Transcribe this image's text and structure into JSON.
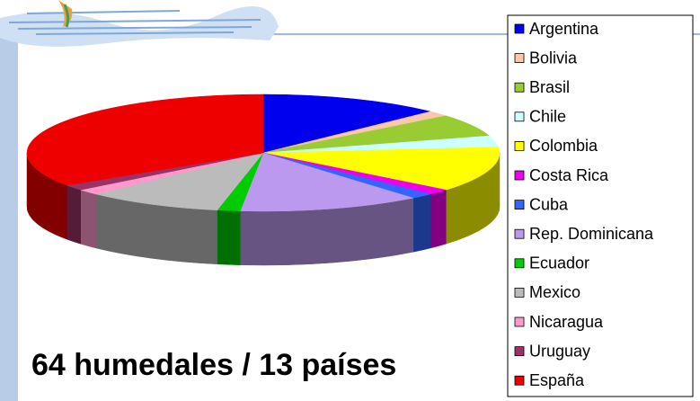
{
  "chart_data": {
    "type": "pie3d",
    "categories": [
      "Argentina",
      "Bolivia",
      "Brasil",
      "Chile",
      "Colombia",
      "Costa Rica",
      "Cuba",
      "Rep. Dominicana",
      "Ecuador",
      "Mexico",
      "Nicaragua",
      "Uruguay",
      "España"
    ],
    "values": [
      8,
      1,
      4,
      2,
      8,
      1,
      1,
      8,
      1,
      6,
      1,
      1,
      22
    ],
    "colors": [
      "#0000ee",
      "#f8c8a8",
      "#99cc33",
      "#ccffff",
      "#ffff00",
      "#ee00ee",
      "#3366ff",
      "#bb99ee",
      "#00cc00",
      "#bbbbbb",
      "#ff99cc",
      "#993366",
      "#ee0000"
    ],
    "annotation": "64 humedales / 13 países",
    "legend": "right"
  }
}
